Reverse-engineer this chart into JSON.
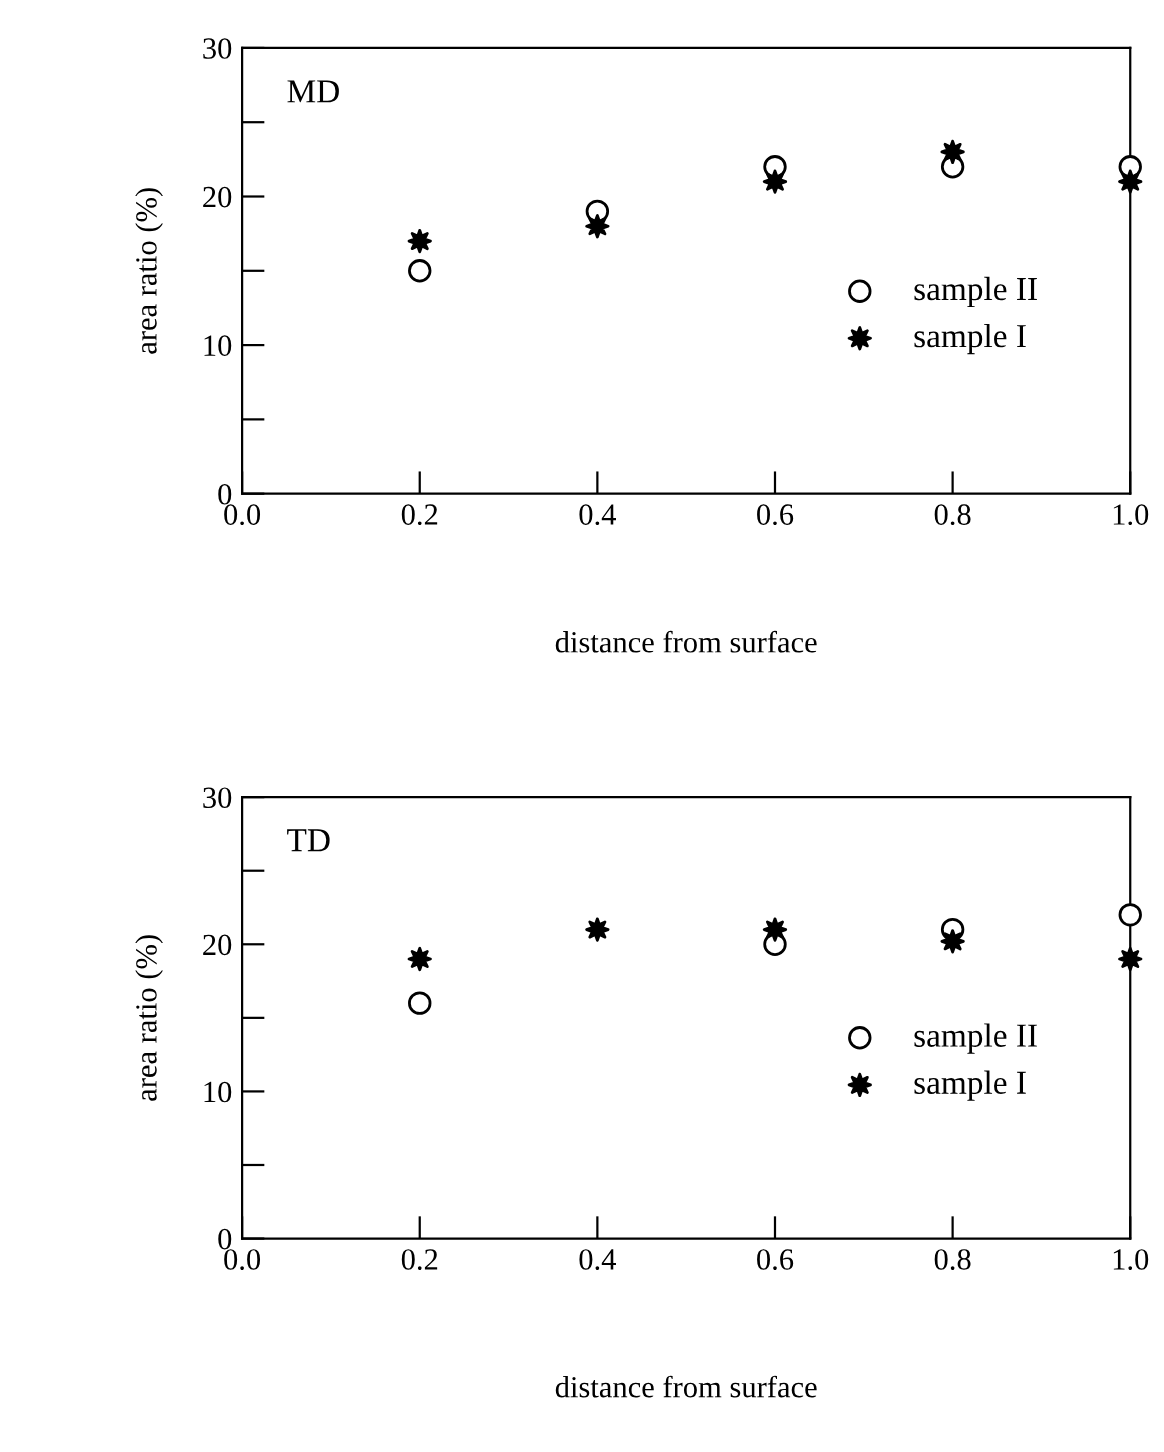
{
  "chart_data": [
    {
      "type": "scatter",
      "annotations": [
        "MD"
      ],
      "xlabel": "distance from surface",
      "ylabel": "area ratio (%)",
      "x": [
        0.2,
        0.4,
        0.6,
        0.8,
        1.0
      ],
      "xlim": [
        0.0,
        1.0
      ],
      "xticks": [
        {
          "value": 0.0,
          "label": "0.0"
        },
        {
          "value": 0.2,
          "label": "0.2"
        },
        {
          "value": 0.4,
          "label": "0.4"
        },
        {
          "value": 0.6,
          "label": "0.6"
        },
        {
          "value": 0.8,
          "label": "0.8"
        },
        {
          "value": 1.0,
          "label": "1.0"
        }
      ],
      "ylim": [
        0,
        30
      ],
      "yticks": [
        0,
        {
          "value": 5,
          "label": null
        },
        10,
        {
          "value": 15,
          "label": null
        },
        20,
        {
          "value": 25,
          "label": null
        },
        30
      ],
      "grid": false,
      "legend": "center right",
      "series": [
        {
          "name": "sample II",
          "color": "#000000",
          "marker": "circle",
          "values": [
            15,
            19,
            22,
            22,
            22
          ]
        },
        {
          "name": "sample I",
          "color": "#000000",
          "marker": "star",
          "values": [
            17,
            18,
            21,
            23,
            21
          ]
        }
      ]
    },
    {
      "type": "scatter",
      "annotations": [
        "TD"
      ],
      "xlabel": "distance from surface",
      "ylabel": "area ratio (%)",
      "x": [
        0.2,
        0.4,
        0.6,
        0.8,
        1.0
      ],
      "xlim": [
        0.0,
        1.0
      ],
      "xticks": [
        {
          "value": 0.0,
          "label": "0.0"
        },
        {
          "value": 0.2,
          "label": "0.2"
        },
        {
          "value": 0.4,
          "label": "0.4"
        },
        {
          "value": 0.6,
          "label": "0.6"
        },
        {
          "value": 0.8,
          "label": "0.8"
        },
        {
          "value": 1.0,
          "label": "1.0"
        }
      ],
      "ylim": [
        0,
        30
      ],
      "yticks": [
        0,
        {
          "value": 5,
          "label": null
        },
        10,
        {
          "value": 15,
          "label": null
        },
        20,
        {
          "value": 25,
          "label": null
        },
        30
      ],
      "grid": false,
      "legend": "center right",
      "series": [
        {
          "name": "sample II",
          "color": "#000000",
          "marker": "circle",
          "values": [
            16,
            null,
            20,
            21,
            22
          ]
        },
        {
          "name": "sample I",
          "color": "#000000",
          "marker": "star",
          "values": [
            19,
            21,
            21,
            20.2,
            19
          ]
        }
      ]
    }
  ]
}
